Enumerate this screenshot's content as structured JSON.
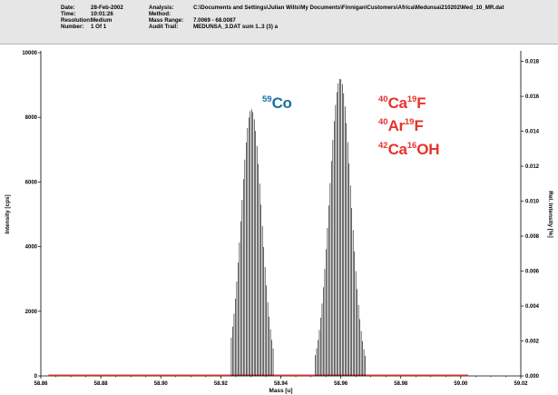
{
  "header": {
    "labels": [
      "Date:",
      "Time:",
      "Resolution:",
      "Number:"
    ],
    "values": [
      "28-Feb-2002",
      "10:01:26",
      "Medium",
      "1 Of 1"
    ],
    "labels2": [
      "Analysis:",
      "Method:",
      "Mass Range:",
      "Audit Trail:"
    ],
    "values2": [
      "C:\\Documents and Settings\\Julian Wills\\My Documents\\Finnigan\\Customers\\Africa\\Medunsa\\210202\\Med_10_MR.dat",
      "",
      "7.0069 - 68.0087",
      "MEDUNSA_3.DAT  sum 1..3 (3) a"
    ]
  },
  "annotations": {
    "co": {
      "mass": "59",
      "element": "Co",
      "color": "#1a6fa0"
    },
    "interferences": [
      {
        "parts": [
          {
            "mass": "40",
            "element": "Ca"
          },
          {
            "mass": "19",
            "element": "F"
          }
        ]
      },
      {
        "parts": [
          {
            "mass": "40",
            "element": "Ar"
          },
          {
            "mass": "19",
            "element": "F"
          }
        ]
      },
      {
        "parts": [
          {
            "mass": "42",
            "element": "Ca"
          },
          {
            "mass": "16",
            "element": "OH"
          }
        ]
      }
    ],
    "interference_color": "#e8312b"
  },
  "chart_data": {
    "type": "bar",
    "xlabel": "Mass [u]",
    "ylabel": "Intensity [cps]",
    "y2label": "Rel. Intensity [%]",
    "xlim": [
      58.86,
      59.02
    ],
    "ylim": [
      0,
      10000
    ],
    "y2lim": [
      0,
      0.0185
    ],
    "x_ticks": [
      "58.86",
      "58.88",
      "58.90",
      "58.92",
      "58.94",
      "58.96",
      "58.98",
      "59.00",
      "59.02"
    ],
    "y_ticks": [
      "0",
      "2000",
      "4000",
      "6000",
      "8000",
      "10000"
    ],
    "y2_ticks": [
      "0.000",
      "0.002",
      "0.004",
      "0.006",
      "0.008",
      "0.010",
      "0.012",
      "0.014",
      "0.016",
      "0.018"
    ],
    "baseline": {
      "x_start": 58.8625,
      "x_end": 59.0025,
      "color": "#e8312b"
    },
    "peaks": [
      {
        "name": "Co-59",
        "center": 58.9302,
        "width": 0.0034,
        "height": 8250,
        "step": 0.00045,
        "span": [
          58.9235,
          58.9375
        ]
      },
      {
        "name": "CaF-ArF-CaOH",
        "center": 58.9598,
        "width": 0.0036,
        "height": 9200,
        "step": 0.00045,
        "span": [
          58.9515,
          58.9685
        ]
      }
    ],
    "line_color": "#000000",
    "grid": false
  }
}
